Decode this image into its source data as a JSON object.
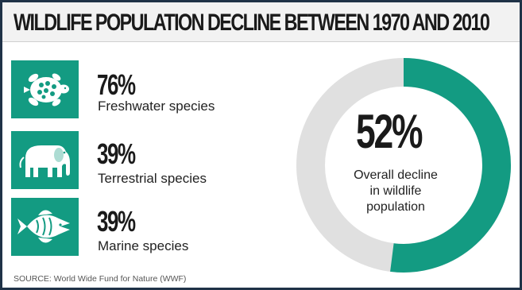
{
  "title": "WILDLIFE POPULATION DECLINE BETWEEN 1970 AND 2010",
  "source": "SOURCE: World Wide Fund for Nature (WWF)",
  "colors": {
    "accent": "#139b82",
    "track": "#e0e0e0"
  },
  "stats": [
    {
      "value": "76%",
      "label": "Freshwater species",
      "icon": "turtle-icon"
    },
    {
      "value": "39%",
      "label": "Terrestrial species",
      "icon": "elephant-icon"
    },
    {
      "value": "39%",
      "label": "Marine species",
      "icon": "fish-icon"
    }
  ],
  "overall": {
    "value": "52%",
    "label_lines": [
      "Overall decline",
      "in wildlife",
      "population"
    ]
  },
  "chart_data": [
    {
      "type": "bar",
      "categories": [
        "Freshwater species",
        "Terrestrial species",
        "Marine species"
      ],
      "values": [
        76,
        39,
        39
      ],
      "unit": "%"
    },
    {
      "type": "pie",
      "categories": [
        "Overall decline in wildlife population"
      ],
      "values": [
        52
      ],
      "unit": "%",
      "style": "donut"
    }
  ]
}
